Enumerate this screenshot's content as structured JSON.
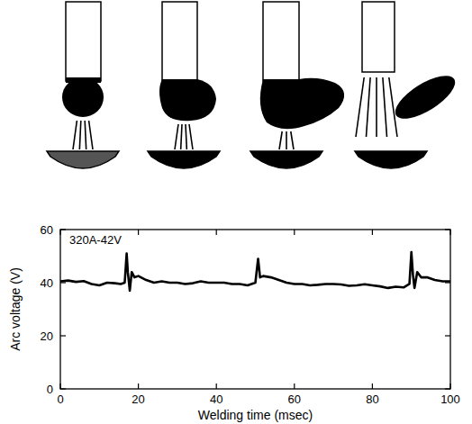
{
  "chart_data": {
    "type": "line",
    "annotation": "320A-42V",
    "x_label": "Welding time (msec)",
    "y_label": "Arc voltage (V)",
    "color": "#000000",
    "xlim": [
      0,
      100
    ],
    "xticks": [
      0,
      20,
      40,
      60,
      80,
      100
    ],
    "ylim": [
      0,
      60
    ],
    "yticks": [
      0,
      20,
      40,
      60
    ],
    "grid": false,
    "x": [
      0,
      2,
      4,
      6,
      8,
      10,
      12,
      14,
      15.5,
      16.5,
      17,
      17.3,
      17.8,
      18.3,
      19,
      20,
      22,
      24,
      26,
      28,
      30,
      32,
      34,
      36,
      38,
      40,
      42,
      44,
      46,
      48,
      50,
      50.7,
      51.2,
      52,
      54,
      56,
      58,
      60,
      62,
      64,
      66,
      68,
      70,
      72,
      74,
      76,
      78,
      80,
      82,
      84,
      86,
      88,
      89.5,
      90,
      90.4,
      90.8,
      91.5,
      92.5,
      94,
      96,
      98,
      100
    ],
    "values": [
      40.5,
      40.8,
      40.3,
      40.6,
      39.5,
      39,
      40,
      39.8,
      39.5,
      40,
      51,
      44,
      37,
      44,
      42,
      42.5,
      41,
      40,
      40.5,
      40,
      40,
      39.5,
      39.8,
      40.5,
      40,
      40,
      40,
      39.5,
      39.5,
      39,
      40,
      49,
      42,
      42.5,
      42,
      41,
      40,
      39.5,
      39.5,
      39,
      39.2,
      39.5,
      39.5,
      39.3,
      38.8,
      39,
      39.4,
      39,
      38.6,
      38,
      38.5,
      38.2,
      39.5,
      51.5,
      43,
      38,
      44,
      42,
      42,
      41,
      40.5,
      40.5
    ]
  }
}
